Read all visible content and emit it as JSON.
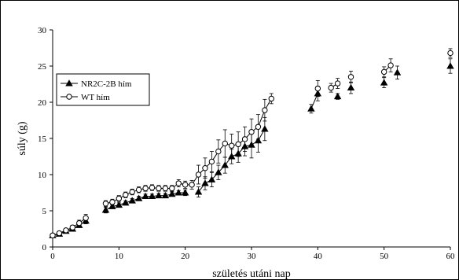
{
  "chart_data": {
    "type": "line",
    "xlabel": "születés utáni nap",
    "ylabel": "súly (g)",
    "xlim": [
      0,
      60
    ],
    "ylim": [
      0,
      30
    ],
    "x_ticks": [
      0,
      10,
      20,
      30,
      40,
      50,
      60
    ],
    "y_ticks": [
      0,
      5,
      10,
      15,
      20,
      25,
      30
    ],
    "grid": false,
    "legend_position": "upper-left",
    "series": [
      {
        "name": "NR2C-2B hím",
        "marker": "filled-triangle",
        "color": "#000000",
        "x": [
          0,
          1,
          2,
          3,
          4,
          5,
          8,
          9,
          10,
          11,
          12,
          13,
          14,
          15,
          16,
          17,
          18,
          19,
          20,
          22,
          23,
          24,
          25,
          26,
          27,
          28,
          29,
          30,
          31,
          32,
          39,
          40,
          43,
          45,
          50,
          52,
          60
        ],
        "y": [
          1.6,
          1.8,
          2.2,
          2.5,
          3.0,
          3.6,
          5.1,
          5.6,
          5.8,
          6.1,
          6.4,
          6.7,
          7.0,
          7.0,
          7.1,
          7.1,
          7.3,
          7.5,
          7.5,
          7.6,
          8.8,
          9.3,
          10.3,
          11.3,
          12.5,
          12.9,
          13.9,
          14.1,
          14.7,
          16.3,
          19.1,
          21.2,
          20.8,
          22.0,
          22.7,
          24.1,
          25.0
        ],
        "err": [
          0.2,
          0.2,
          0.2,
          0.2,
          0.3,
          0.4,
          0.4,
          0.3,
          0.3,
          0.3,
          0.3,
          0.3,
          0.3,
          0.3,
          0.3,
          0.3,
          0.3,
          0.3,
          0.4,
          0.7,
          0.9,
          1.0,
          1.0,
          1.1,
          1.0,
          1.2,
          1.3,
          1.8,
          1.6,
          1.6,
          0.6,
          1.0,
          0.4,
          0.8,
          0.7,
          0.9,
          1.0
        ]
      },
      {
        "name": "WT hím",
        "marker": "open-circle",
        "color": "#000000",
        "x": [
          0,
          1,
          2,
          3,
          4,
          5,
          8,
          9,
          10,
          11,
          12,
          13,
          14,
          15,
          16,
          17,
          18,
          19,
          20,
          21,
          22,
          23,
          24,
          25,
          26,
          27,
          28,
          29,
          30,
          31,
          32,
          33,
          40,
          42,
          43,
          45,
          50,
          51,
          60
        ],
        "y": [
          1.6,
          1.9,
          2.3,
          2.7,
          3.3,
          4.0,
          6.0,
          6.2,
          6.7,
          7.2,
          7.6,
          7.9,
          8.1,
          8.2,
          8.1,
          8.1,
          8.1,
          8.8,
          8.6,
          8.6,
          10.0,
          10.9,
          11.8,
          13.2,
          14.3,
          14.0,
          14.2,
          14.9,
          15.9,
          16.6,
          18.9,
          20.5,
          21.9,
          22.0,
          22.6,
          23.5,
          24.2,
          25.1,
          26.8
        ],
        "err": [
          0.2,
          0.2,
          0.2,
          0.3,
          0.4,
          0.5,
          0.4,
          0.4,
          0.4,
          0.4,
          0.4,
          0.4,
          0.4,
          0.4,
          0.4,
          0.4,
          0.4,
          0.5,
          0.5,
          0.6,
          1.3,
          1.4,
          1.4,
          1.6,
          1.9,
          1.6,
          1.7,
          1.7,
          1.8,
          1.7,
          1.5,
          0.7,
          1.1,
          0.6,
          0.7,
          0.8,
          0.7,
          0.9,
          0.6
        ]
      }
    ]
  }
}
